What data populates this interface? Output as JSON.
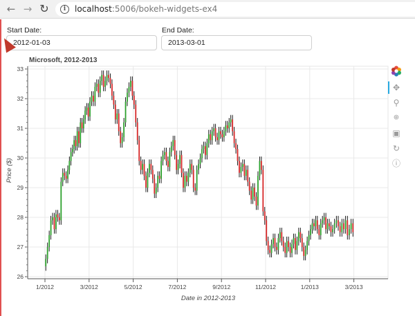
{
  "browser": {
    "url_host": "localhost",
    "url_path": ":5006/bokeh-widgets-ex4"
  },
  "inputs": {
    "start_label": "Start Date:",
    "start_value": "2012-01-03",
    "end_label": "End Date:",
    "end_value": "2013-03-01"
  },
  "toolbar": {
    "tools": [
      "bokeh-logo-icon",
      "pan-icon",
      "box-zoom-icon",
      "wheel-zoom-icon",
      "save-icon",
      "reset-icon",
      "help-icon"
    ],
    "active": "pan-icon"
  },
  "chart_data": {
    "type": "ohlc",
    "title": "Microsoft, 2012-2013",
    "xlabel": "Date in 2012-2013",
    "ylabel": "Price ($)",
    "ylim": [
      26,
      33
    ],
    "y_ticks": [
      26,
      27,
      28,
      29,
      30,
      31,
      32,
      33
    ],
    "x_ticks": [
      "1/2012",
      "3/2012",
      "5/2012",
      "7/2012",
      "9/2012",
      "11/2012",
      "1/2013",
      "3/2013"
    ],
    "grid": true,
    "colors": {
      "up": "#2ca02c",
      "down": "#d62728",
      "wick": "#000000"
    },
    "series": [
      {
        "month": "1/2012",
        "closes": [
          26.6,
          27.0,
          27.4,
          27.9,
          28.0,
          27.6,
          28.1,
          28.0,
          27.9,
          29.2,
          29.5,
          29.4,
          29.3
        ]
      },
      {
        "month": "2/2012",
        "closes": [
          29.6,
          29.9,
          30.2,
          30.3,
          30.6,
          30.4,
          30.9,
          30.5,
          31.2,
          31.0,
          31.3,
          31.6,
          31.7,
          31.4
        ]
      },
      {
        "month": "3/2012",
        "closes": [
          31.9,
          32.1,
          31.9,
          32.4,
          32.5,
          32.2,
          32.6,
          32.8,
          32.4,
          32.6,
          32.8,
          32.7,
          32.5
        ]
      },
      {
        "month": "4/2012",
        "closes": [
          32.1,
          31.8,
          31.3,
          31.5,
          30.9,
          30.5,
          30.7,
          31.2,
          31.9,
          32.2,
          32.4,
          32.6,
          32.1
        ]
      },
      {
        "month": "5/2012",
        "closes": [
          31.8,
          31.2,
          30.6,
          29.9,
          29.6,
          29.8,
          29.4,
          29.0,
          29.5,
          29.8,
          29.6,
          29.3,
          28.8
        ]
      },
      {
        "month": "6/2012",
        "closes": [
          29.0,
          29.4,
          29.3,
          29.9,
          30.1,
          30.2,
          29.9,
          29.7,
          30.2,
          30.4,
          30.6,
          30.1,
          29.6
        ]
      },
      {
        "month": "7/2012",
        "closes": [
          29.8,
          30.1,
          29.5,
          29.0,
          29.4,
          29.2,
          29.5,
          29.8,
          29.6,
          29.0,
          28.9,
          29.6,
          29.8
        ]
      },
      {
        "month": "8/2012",
        "closes": [
          30.0,
          30.3,
          30.4,
          30.1,
          30.5,
          30.8,
          30.6,
          30.9,
          31.0,
          30.7,
          30.6,
          30.9,
          30.8
        ]
      },
      {
        "month": "9/2012",
        "closes": [
          30.7,
          30.9,
          31.1,
          31.0,
          31.2,
          31.3,
          30.9,
          30.5,
          30.3,
          29.9,
          29.5,
          29.7,
          29.8
        ]
      },
      {
        "month": "10/2012",
        "closes": [
          29.4,
          29.6,
          29.2,
          28.9,
          28.6,
          29.0,
          28.7,
          28.4,
          29.4,
          29.9,
          29.6,
          28.2,
          27.9
        ]
      },
      {
        "month": "11/2012",
        "closes": [
          27.2,
          26.9,
          26.8,
          27.1,
          27.3,
          27.0,
          26.9,
          27.3,
          27.5,
          27.2,
          27.0,
          26.8,
          27.2
        ]
      },
      {
        "month": "12/2012",
        "closes": [
          27.0,
          26.8,
          27.1,
          27.3,
          26.9,
          27.2,
          27.5,
          27.3,
          27.0,
          26.7,
          26.9,
          27.2,
          27.4
        ]
      },
      {
        "month": "1/2013",
        "closes": [
          27.6,
          27.8,
          27.7,
          27.9,
          27.6,
          27.4,
          27.8,
          27.9,
          28.0,
          27.6,
          27.8,
          27.7,
          27.5
        ]
      },
      {
        "month": "2/2013",
        "closes": [
          27.6,
          27.8,
          27.9,
          27.7,
          27.5,
          27.8,
          27.6,
          27.9,
          27.4,
          27.6,
          27.8,
          27.5
        ]
      }
    ]
  }
}
